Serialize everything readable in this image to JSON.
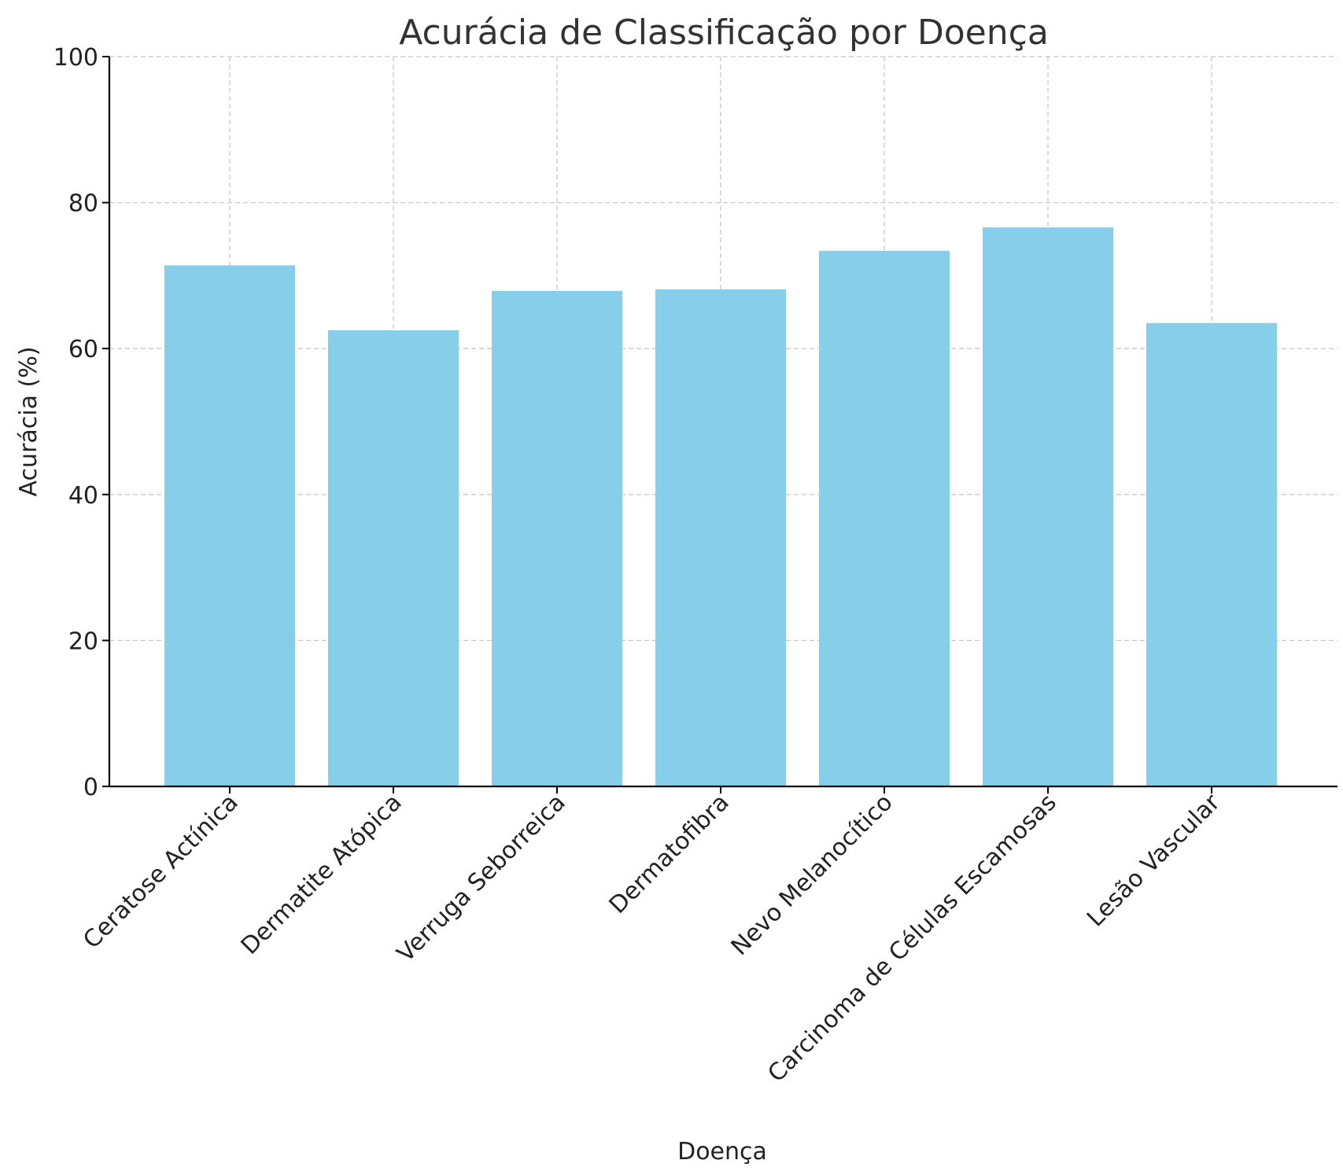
{
  "chart_data": {
    "type": "bar",
    "title": "Acurácia de Classificação por Doença",
    "xlabel": "Doença",
    "ylabel": "Acurácia (%)",
    "categories": [
      "Ceratose Actínica",
      "Dermatite Atópica",
      "Verruga Seborreica",
      "Dermatofibra",
      "Nevo Melanocítico",
      "Carcinoma de Células Escamosas",
      "Lesão Vascular"
    ],
    "values": [
      71.4,
      62.5,
      67.9,
      68.1,
      73.4,
      76.6,
      63.5
    ],
    "ylim": [
      0,
      100
    ],
    "yticks": [
      0,
      20,
      40,
      60,
      80,
      100
    ],
    "grid": true,
    "bar_color": "#87ceeb",
    "legend": "none"
  }
}
